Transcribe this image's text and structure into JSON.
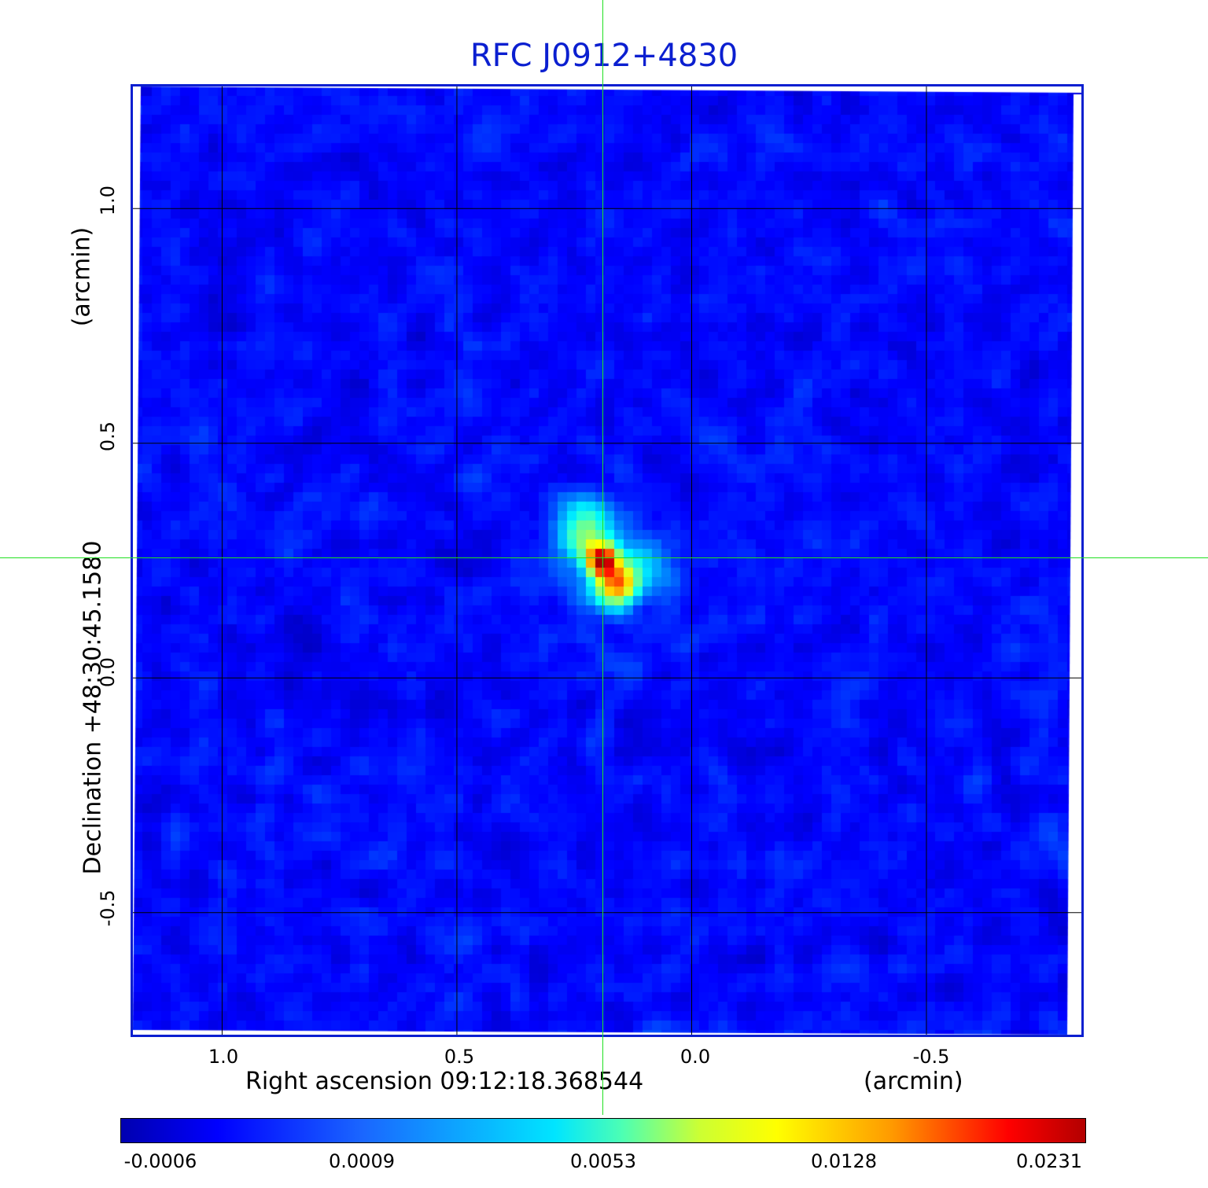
{
  "title": "RFC J0912+4830",
  "axes": {
    "x": {
      "label": "Right ascension  09:12:18.368544",
      "unit": "(arcmin)",
      "ticks": [
        "1.0",
        "0.5",
        "0.0",
        "-0.5"
      ],
      "tick_values": [
        1.0,
        0.5,
        0.0,
        -0.5
      ],
      "range": [
        1.19,
        -0.83
      ]
    },
    "y": {
      "label": "Declination  +48:30:45.1580",
      "unit": "(arcmin)",
      "ticks": [
        "1.0",
        "0.5",
        "0.0",
        "-0.5"
      ],
      "tick_values": [
        1.0,
        0.5,
        0.0,
        -0.5
      ],
      "range": [
        -0.76,
        1.26
      ]
    },
    "grid": true
  },
  "colorbar": {
    "ticks": [
      "-0.0006",
      "0.0009",
      "0.0053",
      "0.0128",
      "0.0231"
    ],
    "colormap": "jet"
  },
  "crosshair": {
    "ra_offset_arcmin": 0.19,
    "dec_offset_arcmin": 0.255,
    "color": "#21e021"
  },
  "source": {
    "peak_ra_offset_arcmin": 0.19,
    "peak_dec_offset_arcmin": 0.25
  },
  "colors": {
    "title": "#0b1fd0",
    "frame": "#0b1fd0",
    "background_map": "#1a5cf0"
  }
}
